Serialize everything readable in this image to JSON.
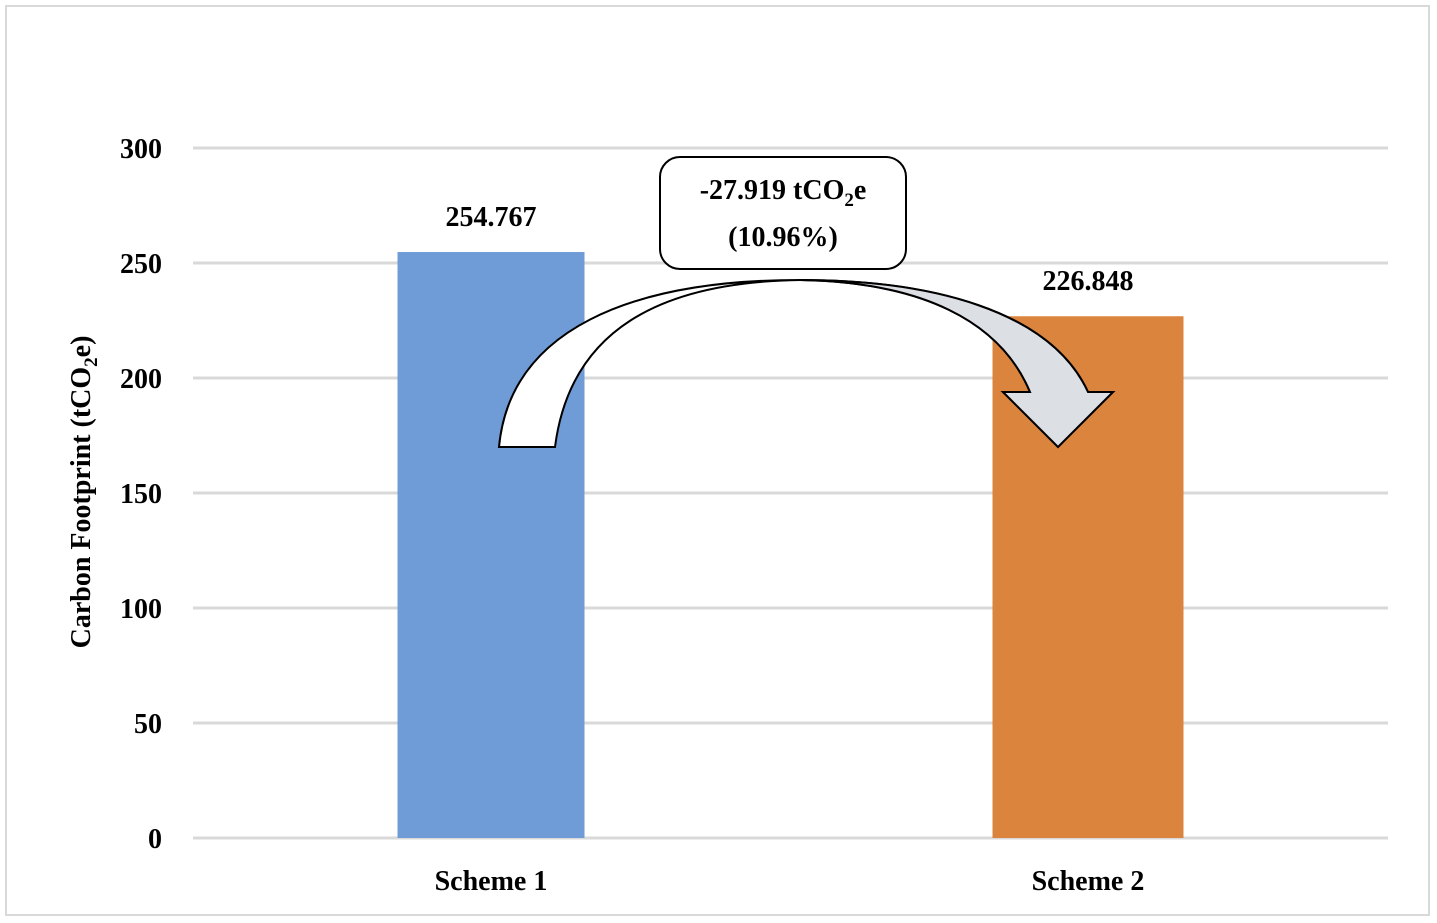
{
  "chart_data": {
    "type": "bar",
    "categories": [
      "Scheme 1",
      "Scheme 2"
    ],
    "values": [
      254.767,
      226.848
    ],
    "data_labels": [
      "254.767",
      "226.848"
    ],
    "bar_colors": [
      "#6f9bd7",
      "#db843d"
    ],
    "ylabel_parts": {
      "pre": "Carbon Footprint (tCO",
      "sub": "2",
      "post": "e)"
    },
    "ylim": [
      0,
      300
    ],
    "yticks": [
      0,
      50,
      100,
      150,
      200,
      250,
      300
    ],
    "grid": true,
    "annotation": {
      "line1_parts": {
        "pre": "-27.919 tCO",
        "sub": "2",
        "post": "e"
      },
      "line2": "(10.96%)"
    }
  }
}
